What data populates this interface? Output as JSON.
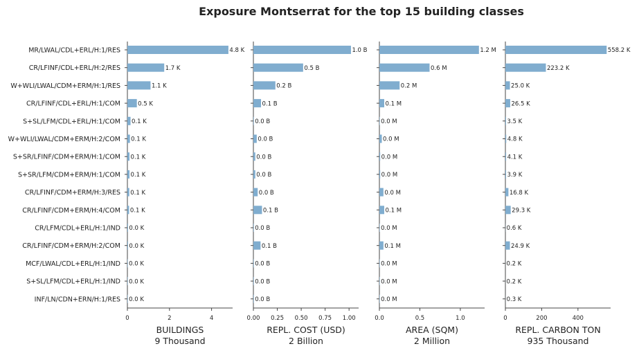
{
  "chart_data": {
    "type": "bar",
    "title": "Exposure Montserrat for the top 15 building classes",
    "bar_color": "#80adcf",
    "categories": [
      "MR/LWAL/CDL+ERL/H:1/RES",
      "CR/LFINF/CDL+ERL/H:2/RES",
      "W+WLI/LWAL/CDM+ERM/H:1/RES",
      "CR/LFINF/CDL+ERL/H:1/COM",
      "S+SL/LFM/CDL+ERL/H:1/COM",
      "W+WLI/LWAL/CDM+ERM/H:2/COM",
      "S+SR/LFINF/CDM+ERM/H:1/COM",
      "S+SR/LFM/CDM+ERM/H:1/COM",
      "CR/LFINF/CDM+ERM/H:3/RES",
      "CR/LFINF/CDM+ERM/H:4/COM",
      "CR/LFM/CDL+ERL/H:1/IND",
      "CR/LFINF/CDM+ERM/H:2/COM",
      "MCF/LWAL/CDL+ERL/H:1/IND",
      "S+SL/LFM/CDL+ERL/H:1/IND",
      "INF/LN/CDN+ERN/H:1/RES"
    ],
    "panels": [
      {
        "xlabel": "BUILDINGS",
        "total": "9 Thousand",
        "xlim": [
          0,
          5
        ],
        "ticks": [
          0,
          2,
          4
        ],
        "tick_labels": [
          "0",
          "2",
          "4"
        ],
        "values": [
          4.8,
          1.75,
          1.1,
          0.45,
          0.15,
          0.12,
          0.1,
          0.1,
          0.09,
          0.08,
          0.03,
          0.03,
          0.02,
          0.02,
          0.02
        ],
        "labels": [
          "4.8 K",
          "1.7 K",
          "1.1 K",
          "0.5 K",
          "0.1 K",
          "0.1 K",
          "0.1 K",
          "0.1 K",
          "0.1 K",
          "0.1 K",
          "0.0 K",
          "0.0 K",
          "0.0 K",
          "0.0 K",
          "0.0 K"
        ]
      },
      {
        "xlabel": "REPL. COST (USD)",
        "total": "2 Billion",
        "xlim": [
          0,
          1.1
        ],
        "ticks": [
          0,
          0.25,
          0.5,
          0.75,
          1.0
        ],
        "tick_labels": [
          "0.00",
          "0.25",
          "0.50",
          "0.75",
          "1.00"
        ],
        "values": [
          1.02,
          0.52,
          0.23,
          0.08,
          0.005,
          0.035,
          0.02,
          0.02,
          0.045,
          0.09,
          0.005,
          0.075,
          0.005,
          0.005,
          0.005
        ],
        "labels": [
          "1.0 B",
          "0.5 B",
          "0.2 B",
          "0.1 B",
          "0.0 B",
          "0.0 B",
          "0.0 B",
          "0.0 B",
          "0.0 B",
          "0.1 B",
          "0.0 B",
          "0.1 B",
          "0.0 B",
          "0.0 B",
          "0.0 B"
        ]
      },
      {
        "xlabel": "AREA (SQM)",
        "total": "2 Million",
        "xlim": [
          0,
          1.3
        ],
        "ticks": [
          0,
          0.5,
          1.0
        ],
        "tick_labels": [
          "0.0",
          "0.5",
          "1.0"
        ],
        "values": [
          1.23,
          0.62,
          0.25,
          0.06,
          0.005,
          0.03,
          0.01,
          0.01,
          0.05,
          0.06,
          0.005,
          0.05,
          0.005,
          0.005,
          0.005
        ],
        "labels": [
          "1.2 M",
          "0.6 M",
          "0.2 M",
          "0.1 M",
          "0.0 M",
          "0.0 M",
          "0.0 M",
          "0.0 M",
          "0.0 M",
          "0.1 M",
          "0.0 M",
          "0.1 M",
          "0.0 M",
          "0.0 M",
          "0.0 M"
        ]
      },
      {
        "xlabel": "REPL. CARBON TON",
        "total": "935 Thousand",
        "xlim": [
          0,
          580
        ],
        "ticks": [
          0,
          200,
          400
        ],
        "tick_labels": [
          "0",
          "200",
          "400"
        ],
        "values": [
          558.2,
          223.2,
          25.0,
          26.5,
          3.5,
          4.8,
          4.1,
          3.9,
          16.8,
          29.3,
          0.6,
          24.9,
          0.2,
          0.2,
          0.3
        ],
        "labels": [
          "558.2 K",
          "223.2 K",
          "25.0 K",
          "26.5 K",
          "3.5 K",
          "4.8 K",
          "4.1 K",
          "3.9 K",
          "16.8 K",
          "29.3 K",
          "0.6 K",
          "24.9 K",
          "0.2 K",
          "0.2 K",
          "0.3 K"
        ]
      }
    ]
  }
}
